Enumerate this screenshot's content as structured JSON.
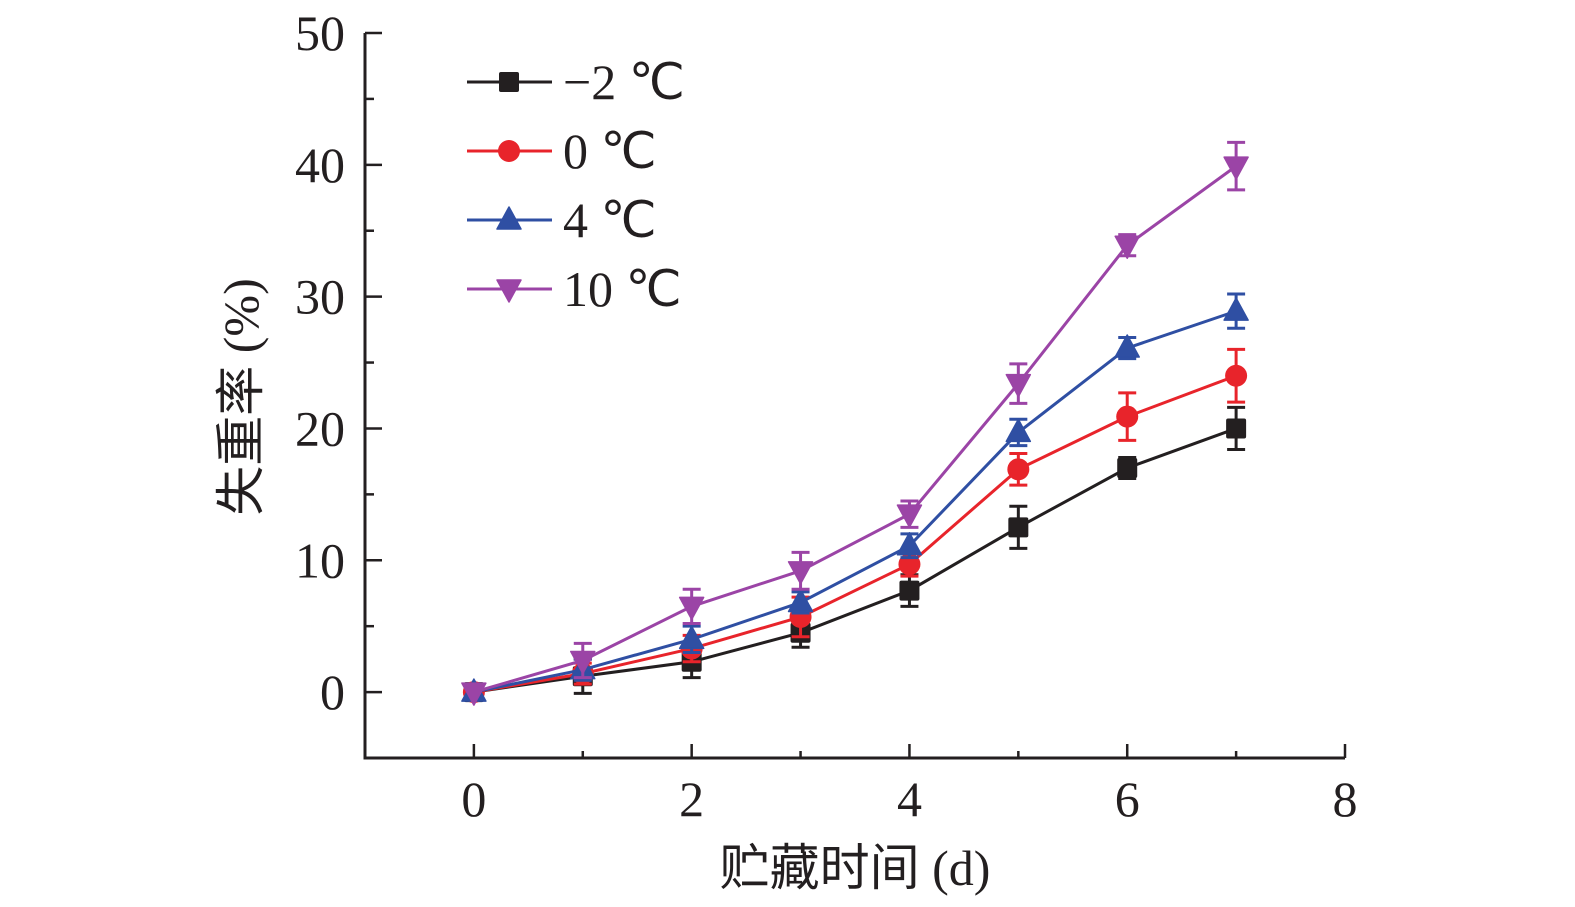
{
  "chart_data": {
    "type": "line",
    "title": "",
    "xlabel": "贮藏时间 (d)",
    "ylabel": "失重率 (%)",
    "xlim": [
      -1,
      8
    ],
    "ylim": [
      -5,
      50
    ],
    "xticks": [
      0,
      2,
      4,
      6,
      8
    ],
    "xtick_labels": [
      "0",
      "2",
      "4",
      "6",
      "8"
    ],
    "x_minor_ticks": [
      1,
      3,
      5,
      7
    ],
    "yticks": [
      0,
      10,
      20,
      30,
      40,
      50
    ],
    "ytick_labels": [
      "0",
      "10",
      "20",
      "30",
      "40",
      "50"
    ],
    "y_minor_ticks": [
      5,
      15,
      25,
      35,
      45
    ],
    "grid": false,
    "legend_position": "top-left",
    "x": [
      0,
      1,
      2,
      3,
      4,
      5,
      6,
      7
    ],
    "series": [
      {
        "name": "−2 ℃",
        "color": "#231f20",
        "marker": "square",
        "values": [
          0,
          1.2,
          2.3,
          4.5,
          7.7,
          12.5,
          17.0,
          20.0
        ],
        "errors": [
          0,
          1.3,
          1.2,
          1.1,
          1.2,
          1.6,
          0.8,
          1.6
        ]
      },
      {
        "name": "0 ℃",
        "color": "#e8242b",
        "marker": "circle",
        "values": [
          0,
          1.4,
          3.3,
          5.7,
          9.7,
          16.9,
          20.9,
          24.0
        ],
        "errors": [
          0,
          0.8,
          1.0,
          1.5,
          0.9,
          1.2,
          1.8,
          2.0
        ]
      },
      {
        "name": "4 ℃",
        "color": "#2f4fa3",
        "marker": "triangle-up",
        "values": [
          0,
          1.7,
          4.0,
          6.8,
          11.1,
          19.7,
          26.1,
          28.9
        ],
        "errors": [
          0,
          0.8,
          1.0,
          0.8,
          0.9,
          1.0,
          0.8,
          1.3
        ]
      },
      {
        "name": "10 ℃",
        "color": "#9b44a6",
        "marker": "triangle-down",
        "values": [
          0,
          2.4,
          6.5,
          9.2,
          13.5,
          23.4,
          33.9,
          39.9
        ],
        "errors": [
          0,
          1.3,
          1.3,
          1.4,
          1.0,
          1.5,
          0.8,
          1.8
        ]
      }
    ]
  }
}
